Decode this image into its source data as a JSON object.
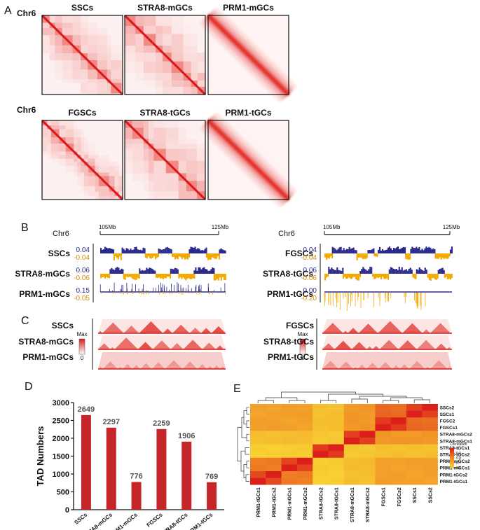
{
  "panel_a": {
    "letter": "A",
    "rows": [
      {
        "chrom": "Chr6",
        "samples": [
          "SSCs",
          "STRA8-mGCs",
          "PRM1-mGCs"
        ]
      },
      {
        "chrom": "Chr6",
        "samples": [
          "FGSCs",
          "STRA8-tGCs",
          "PRM1-tGCs"
        ]
      }
    ]
  },
  "panel_b": {
    "letter": "B",
    "groups": [
      {
        "chrom": "Chr6",
        "start": "105Mb",
        "end": "125Mb",
        "tracks": [
          {
            "name": "SSCs",
            "pos": "0.04",
            "neg": "-0.04"
          },
          {
            "name": "STRA8-mGCs",
            "pos": "0.06",
            "neg": "-0.06"
          },
          {
            "name": "PRM1-mGCs",
            "pos": "0.15",
            "neg": "-0.05"
          }
        ]
      },
      {
        "chrom": "Chr6",
        "start": "105Mb",
        "end": "125Mb",
        "tracks": [
          {
            "name": "FGSCs",
            "pos": "0.04",
            "neg": "-0.04"
          },
          {
            "name": "STRA8-tGCs",
            "pos": "0.06",
            "neg": "-0.06"
          },
          {
            "name": "PRM1-tGCs",
            "pos": "0.00",
            "neg": "-0.20"
          }
        ]
      }
    ]
  },
  "panel_c": {
    "letter": "C",
    "groups": [
      {
        "scale_max": "Max",
        "scale_min": "0",
        "samples": [
          "SSCs",
          "STRA8-mGCs",
          "PRM1-mGCs"
        ]
      },
      {
        "scale_max": "Max",
        "scale_min": "0",
        "samples": [
          "FGSCs",
          "STRA8-tGCs",
          "PRM1-tGCs"
        ]
      }
    ]
  },
  "chart_data": [
    {
      "type": "bar",
      "panel_label": "D",
      "y_label": "TAD Numbers",
      "categories": [
        "SSCs",
        "STRA8-mGCs",
        "PRM1-mGCs",
        "FGSCs",
        "STRA8-tGCs",
        "PRM1-tGCs"
      ],
      "values": [
        2649,
        2297,
        776,
        2259,
        1906,
        769
      ],
      "color": "#c4262a",
      "ylim": [
        0,
        3000
      ],
      "yticks": [
        0,
        500,
        1000,
        1500,
        2000,
        2500,
        3000
      ]
    },
    {
      "type": "heatmap",
      "panel_label": "E",
      "columns": [
        "PRM1-tGCs1",
        "PRM1-tGCs2",
        "PRM1-mGCs1",
        "PRM1-mGCs2",
        "STRA8-tGCs2",
        "STRA8-tGCs1",
        "STRA8-mGCs1",
        "STRA8-mGCs2",
        "FGSCs1",
        "FGSCs2",
        "SSCs1",
        "SSCs2"
      ],
      "rows": [
        "SSCs2",
        "SSCs1",
        "FGSC2",
        "FGSCs1",
        "STRA8-mGCs2",
        "STRA8-mGCs1",
        "STRA8-tGCs1",
        "STRA8-tGCs2",
        "PRM1-mGCs2",
        "PRM1-mGCs1",
        "PRM1-tGCs2",
        "PRM1-tGCs1"
      ],
      "values": [
        [
          0.74,
          0.73,
          0.75,
          0.74,
          0.66,
          0.65,
          0.76,
          0.77,
          0.86,
          0.85,
          0.94,
          1
        ],
        [
          0.73,
          0.74,
          0.74,
          0.75,
          0.65,
          0.66,
          0.77,
          0.76,
          0.87,
          0.86,
          1,
          0.94
        ],
        [
          0.75,
          0.74,
          0.73,
          0.74,
          0.66,
          0.66,
          0.77,
          0.76,
          0.95,
          1,
          0.86,
          0.85
        ],
        [
          0.74,
          0.75,
          0.74,
          0.73,
          0.65,
          0.66,
          0.76,
          0.77,
          1,
          0.95,
          0.87,
          0.86
        ],
        [
          0.66,
          0.65,
          0.66,
          0.67,
          0.64,
          0.63,
          0.94,
          1,
          0.77,
          0.76,
          0.76,
          0.77
        ],
        [
          0.65,
          0.66,
          0.67,
          0.66,
          0.63,
          0.64,
          1,
          0.94,
          0.76,
          0.77,
          0.77,
          0.76
        ],
        [
          0.62,
          0.61,
          0.62,
          0.63,
          0.95,
          1,
          0.64,
          0.63,
          0.66,
          0.65,
          0.66,
          0.65
        ],
        [
          0.61,
          0.62,
          0.63,
          0.62,
          1,
          0.95,
          0.63,
          0.64,
          0.65,
          0.66,
          0.65,
          0.66
        ],
        [
          0.82,
          0.83,
          0.93,
          1,
          0.62,
          0.63,
          0.66,
          0.67,
          0.74,
          0.74,
          0.75,
          0.74
        ],
        [
          0.83,
          0.82,
          1,
          0.93,
          0.63,
          0.62,
          0.67,
          0.66,
          0.74,
          0.73,
          0.74,
          0.75
        ],
        [
          0.92,
          1,
          0.82,
          0.83,
          0.62,
          0.61,
          0.65,
          0.66,
          0.74,
          0.75,
          0.73,
          0.74
        ],
        [
          1,
          0.92,
          0.83,
          0.82,
          0.61,
          0.62,
          0.66,
          0.65,
          0.75,
          0.74,
          0.74,
          0.73
        ]
      ],
      "colorbar_title": "Correlation",
      "clim": [
        0.6,
        1
      ],
      "cticks": [
        1,
        0.9,
        0.8,
        0.7,
        0.6
      ],
      "colors": [
        "#f8d434",
        "#f08a24",
        "#dc1f1b"
      ]
    }
  ]
}
